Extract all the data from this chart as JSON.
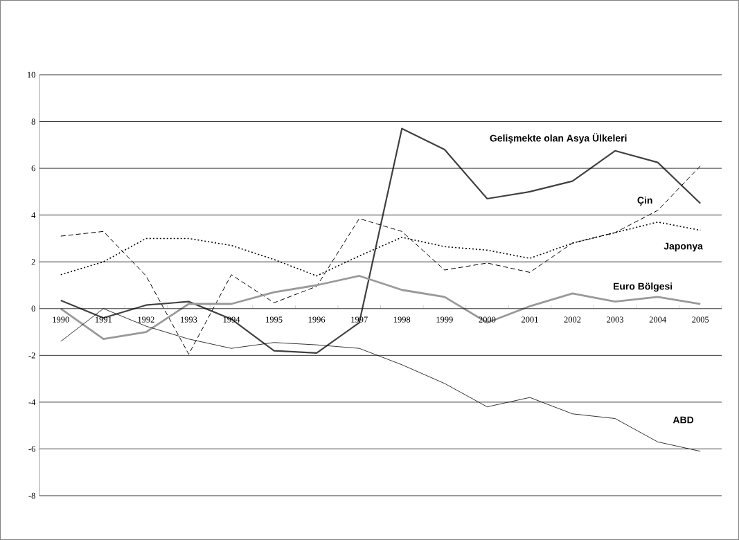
{
  "chart_data": {
    "type": "line",
    "categories": [
      "1990",
      "1991",
      "1992",
      "1993",
      "1994",
      "1995",
      "1996",
      "1997",
      "1998",
      "1999",
      "2000",
      "2001",
      "2002",
      "2003",
      "2004",
      "2005"
    ],
    "series": [
      {
        "name": "Gelişmekte olan Asya Ülkeleri",
        "color": "#404040",
        "line_style": "solid",
        "values": [
          0.35,
          -0.4,
          0.15,
          0.3,
          -0.45,
          -1.8,
          -1.9,
          -0.6,
          7.7,
          6.8,
          4.7,
          5.0,
          5.45,
          6.75,
          6.25,
          4.5
        ]
      },
      {
        "name": "Çin",
        "color": "#000000",
        "line_style": "dashed",
        "values": [
          3.1,
          3.3,
          1.4,
          -1.95,
          1.45,
          0.25,
          0.95,
          3.85,
          3.3,
          1.65,
          1.95,
          1.55,
          2.8,
          3.25,
          4.2,
          6.1
        ]
      },
      {
        "name": "Japonya",
        "color": "#000000",
        "line_style": "dotted",
        "values": [
          1.45,
          2.0,
          3.0,
          3.0,
          2.7,
          2.1,
          1.4,
          2.25,
          3.05,
          2.65,
          2.5,
          2.15,
          2.8,
          3.25,
          3.7,
          3.35
        ]
      },
      {
        "name": "Euro Bölgesi",
        "color": "#999999",
        "line_style": "solid",
        "values": [
          0,
          -1.3,
          -1.0,
          0.2,
          0.2,
          0.7,
          1.0,
          1.4,
          0.8,
          0.5,
          -0.6,
          0.1,
          0.65,
          0.3,
          0.5,
          0.2
        ]
      },
      {
        "name": "ABD",
        "color": "#000000",
        "line_style": "solid",
        "values": [
          -1.4,
          0,
          -0.75,
          -1.3,
          -1.7,
          -1.45,
          -1.55,
          -1.7,
          -2.4,
          -3.2,
          -4.2,
          -3.8,
          -4.5,
          -4.7,
          -5.7,
          -6.1
        ]
      }
    ],
    "ylim": [
      -8,
      10
    ],
    "yticks": [
      -8,
      -6,
      -4,
      -2,
      0,
      2,
      4,
      6,
      8,
      10
    ],
    "grid": "y",
    "legend": false,
    "marker": "none"
  }
}
